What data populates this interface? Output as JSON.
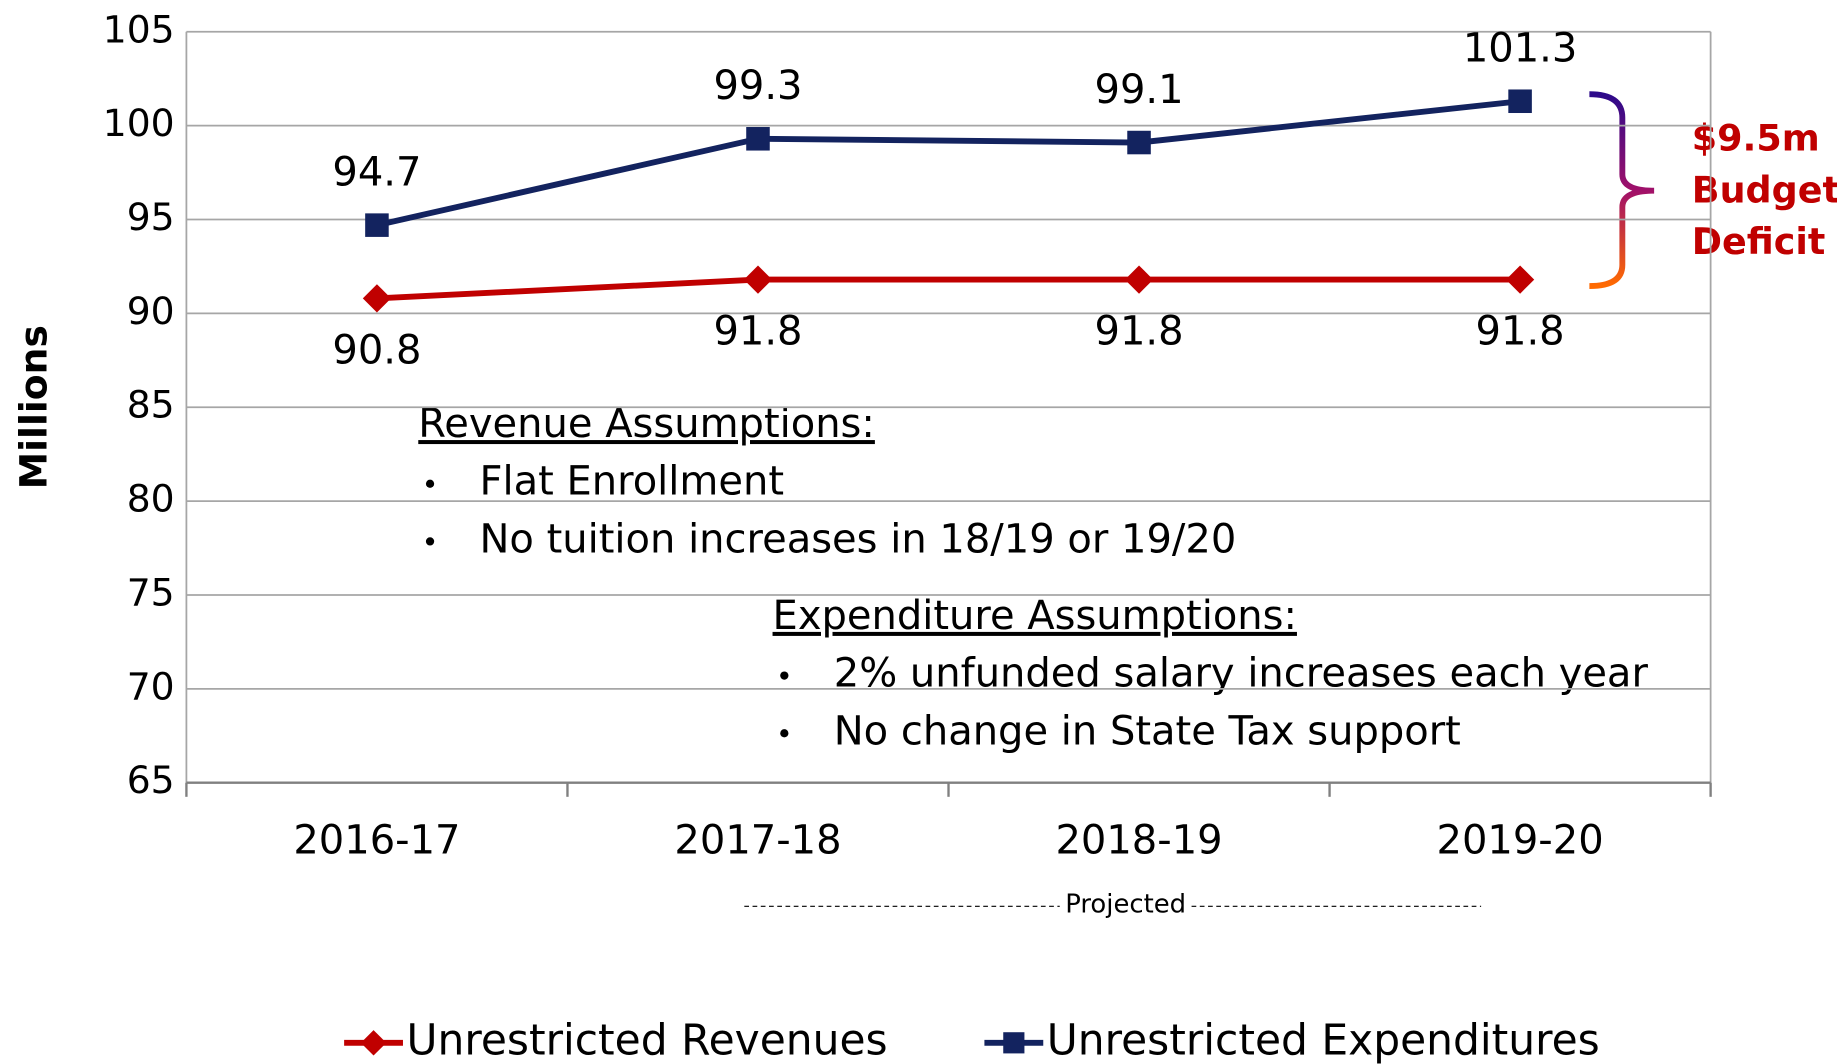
{
  "chart_data": {
    "type": "line",
    "ylabel": "Millions",
    "categories": [
      "2016-17",
      "2017-18",
      "2018-19",
      "2019-20"
    ],
    "series": [
      {
        "name": "Unrestricted Revenues",
        "color": "#c00000",
        "marker": "diamond",
        "label_position": "below",
        "values": [
          90.8,
          91.8,
          91.8,
          91.8
        ]
      },
      {
        "name": "Unrestricted Expenditures",
        "color": "#13235f",
        "marker": "square",
        "label_position": "above",
        "values": [
          94.7,
          99.3,
          99.1,
          101.3
        ]
      }
    ],
    "ylim": [
      65,
      105
    ],
    "yticks": [
      65,
      70,
      75,
      80,
      85,
      90,
      95,
      100,
      105
    ],
    "grid": true,
    "legend": "bottom",
    "annotations": {
      "deficit": [
        "$9.5m",
        "Budget",
        "Deficit"
      ],
      "revenue_heading": "Revenue Assumptions:",
      "revenue_items": [
        "Flat Enrollment",
        "No tuition increases in 18/19 or 19/20"
      ],
      "expenditure_heading": "Expenditure Assumptions:",
      "expenditure_items": [
        "2% unfunded salary increases each year",
        "No change in State Tax support"
      ],
      "projected": "Projected"
    }
  }
}
